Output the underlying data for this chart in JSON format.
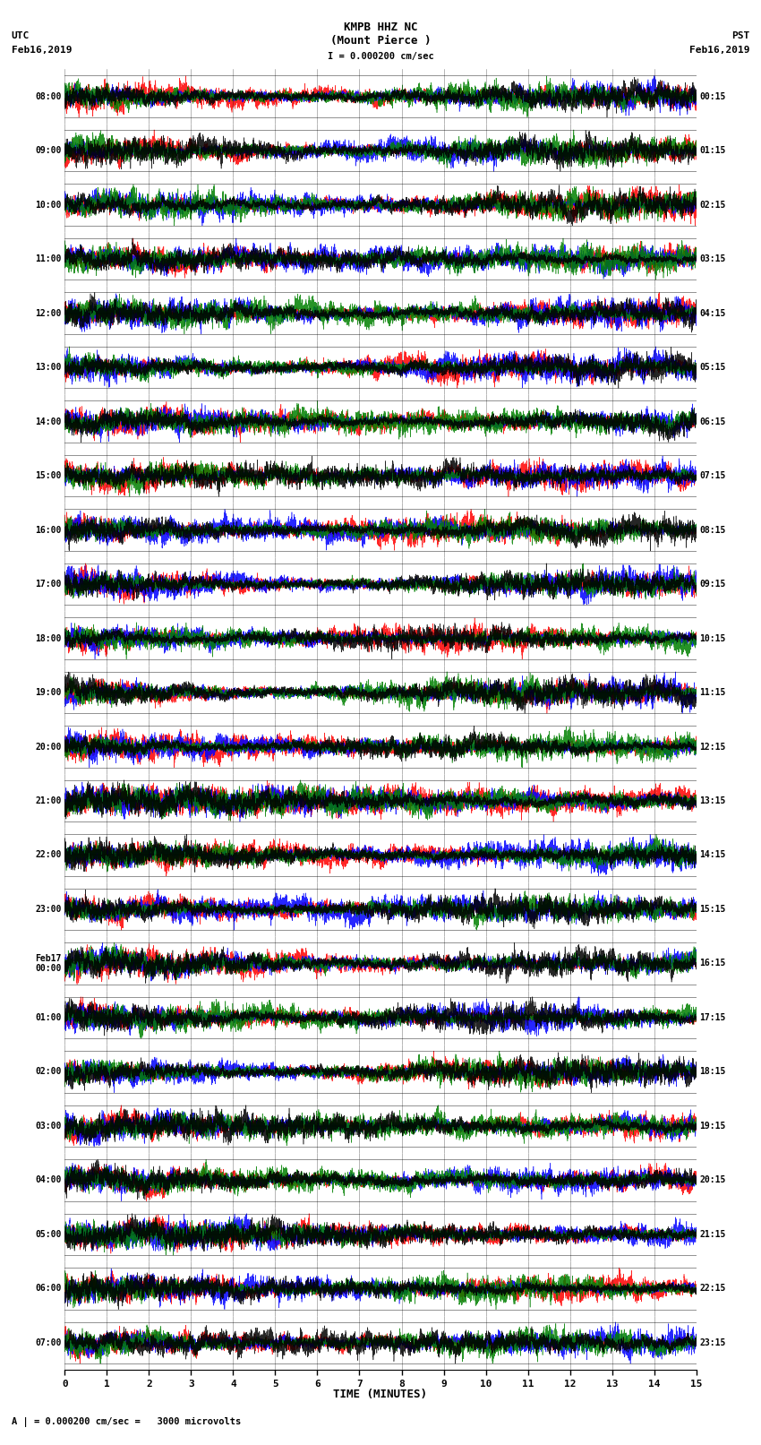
{
  "title_line1": "KMPB HHZ NC",
  "title_line2": "(Mount Pierce )",
  "scale_bar": "I = 0.000200 cm/sec",
  "left_header_line1": "UTC",
  "left_header_line2": "Feb16,2019",
  "right_header_line1": "PST",
  "right_header_line2": "Feb16,2019",
  "bottom_label": "TIME (MINUTES)",
  "bottom_note": "A | = 0.000200 cm/sec =   3000 microvolts",
  "utc_times": [
    "08:00",
    "09:00",
    "10:00",
    "11:00",
    "12:00",
    "13:00",
    "14:00",
    "15:00",
    "16:00",
    "17:00",
    "18:00",
    "19:00",
    "20:00",
    "21:00",
    "22:00",
    "23:00",
    "Feb17\n00:00",
    "01:00",
    "02:00",
    "03:00",
    "04:00",
    "05:00",
    "06:00",
    "07:00"
  ],
  "pst_times": [
    "00:15",
    "01:15",
    "02:15",
    "03:15",
    "04:15",
    "05:15",
    "06:15",
    "07:15",
    "08:15",
    "09:15",
    "10:15",
    "11:15",
    "12:15",
    "13:15",
    "14:15",
    "15:15",
    "16:15",
    "17:15",
    "18:15",
    "19:15",
    "20:15",
    "21:15",
    "22:15",
    "23:15"
  ],
  "num_traces": 24,
  "minutes_per_trace": 15,
  "background_color": "#ffffff",
  "figsize": [
    8.5,
    16.13
  ],
  "dpi": 100,
  "xmin": 0,
  "xmax": 15,
  "xticks": [
    0,
    1,
    2,
    3,
    4,
    5,
    6,
    7,
    8,
    9,
    10,
    11,
    12,
    13,
    14,
    15
  ]
}
